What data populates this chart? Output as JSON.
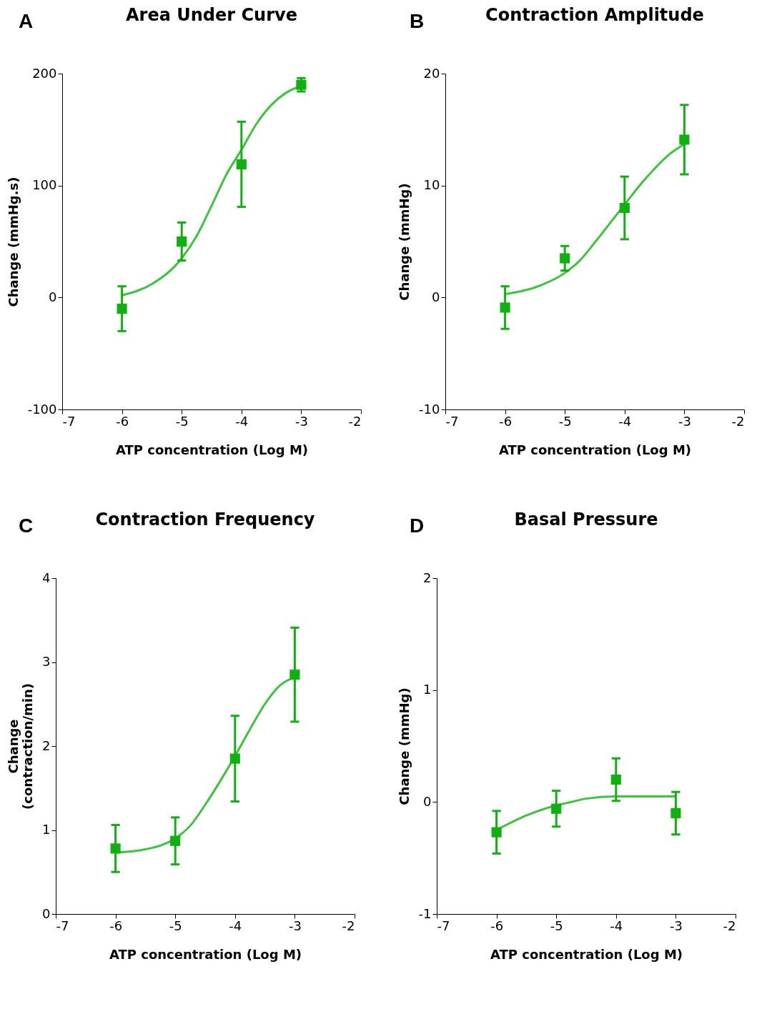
{
  "chart_data": [
    {
      "type": "scatter",
      "title": "Area Under Curve",
      "annotations": [
        "A"
      ],
      "xlabel": "ATP concentration (Log M)",
      "ylabel": "Change (mmHg.s)",
      "xlim": [
        -7,
        -2
      ],
      "xticks": [
        -7,
        -6,
        -5,
        -4,
        -3,
        -2
      ],
      "ylim": [
        -100,
        200
      ],
      "yticks": [
        -100,
        0,
        100,
        200
      ],
      "grid": false,
      "series": [
        {
          "color": "#10b010",
          "marker": "square",
          "x": [
            -6,
            -5,
            -4,
            -3
          ],
          "values": [
            -10,
            50,
            119,
            190
          ],
          "errors": [
            20,
            17,
            38,
            6
          ]
        },
        {
          "type": "line",
          "color": "#3cc43c",
          "x": [
            -6,
            -5.5,
            -5,
            -4.75,
            -4.5,
            -4.25,
            -4,
            -3.75,
            -3.5,
            -3.25,
            -3
          ],
          "values": [
            2,
            12,
            35,
            55,
            82,
            110,
            132,
            155,
            172,
            183,
            189
          ]
        }
      ]
    },
    {
      "type": "scatter",
      "title": "Contraction Amplitude",
      "annotations": [
        "B"
      ],
      "xlabel": "ATP concentration (Log M)",
      "ylabel": "Change (mmHg)",
      "xlim": [
        -7,
        -2
      ],
      "xticks": [
        -7,
        -6,
        -5,
        -4,
        -3,
        -2
      ],
      "ylim": [
        -10,
        20
      ],
      "yticks": [
        -10,
        0,
        10,
        20
      ],
      "grid": false,
      "series": [
        {
          "color": "#10b010",
          "marker": "square",
          "x": [
            -6,
            -5,
            -4,
            -3
          ],
          "values": [
            -0.9,
            3.5,
            8,
            14.1
          ],
          "errors": [
            1.9,
            1.1,
            2.8,
            3.1
          ]
        },
        {
          "type": "line",
          "color": "#3cc43c",
          "x": [
            -6,
            -5.5,
            -5,
            -4.75,
            -4.5,
            -4.25,
            -4,
            -3.75,
            -3.5,
            -3.25,
            -3
          ],
          "values": [
            0.3,
            0.9,
            2.2,
            3.3,
            4.9,
            6.6,
            8.3,
            10,
            11.5,
            12.8,
            13.7
          ]
        }
      ]
    },
    {
      "type": "scatter",
      "title": "Contraction Frequency",
      "annotations": [
        "C"
      ],
      "xlabel": "ATP concentration (Log M)",
      "ylabel": "Change\n(contraction/min)",
      "xlim": [
        -7,
        -2
      ],
      "xticks": [
        -7,
        -6,
        -5,
        -4,
        -3,
        -2
      ],
      "ylim": [
        0,
        4
      ],
      "yticks": [
        0,
        1,
        2,
        3,
        4
      ],
      "grid": false,
      "series": [
        {
          "color": "#10b010",
          "marker": "square",
          "x": [
            -6,
            -5,
            -4,
            -3
          ],
          "values": [
            0.78,
            0.87,
            1.85,
            2.85
          ],
          "errors": [
            0.28,
            0.28,
            0.51,
            0.56
          ]
        },
        {
          "type": "line",
          "color": "#3cc43c",
          "x": [
            -6,
            -5.5,
            -5,
            -4.75,
            -4.5,
            -4.25,
            -4,
            -3.75,
            -3.5,
            -3.25,
            -3
          ],
          "values": [
            0.73,
            0.77,
            0.9,
            1.05,
            1.3,
            1.58,
            1.88,
            2.2,
            2.5,
            2.72,
            2.82
          ]
        }
      ]
    },
    {
      "type": "scatter",
      "title": "Basal Pressure",
      "annotations": [
        "D"
      ],
      "xlabel": "ATP concentration (Log M)",
      "ylabel": "Change (mmHg)",
      "xlim": [
        -7,
        -2
      ],
      "xticks": [
        -7,
        -6,
        -5,
        -4,
        -3,
        -2
      ],
      "ylim": [
        -1,
        2
      ],
      "yticks": [
        -1,
        0,
        1,
        2
      ],
      "grid": false,
      "series": [
        {
          "color": "#10b010",
          "marker": "square",
          "x": [
            -6,
            -5,
            -4,
            -3
          ],
          "values": [
            -0.27,
            -0.06,
            0.2,
            -0.1
          ],
          "errors": [
            0.19,
            0.16,
            0.19,
            0.19
          ]
        },
        {
          "type": "line",
          "color": "#3cc43c",
          "x": [
            -6,
            -5.5,
            -5,
            -4.75,
            -4.5,
            -4,
            -3.5,
            -3
          ],
          "values": [
            -0.25,
            -0.12,
            -0.03,
            0,
            0.03,
            0.05,
            0.05,
            0.05
          ]
        }
      ]
    }
  ]
}
